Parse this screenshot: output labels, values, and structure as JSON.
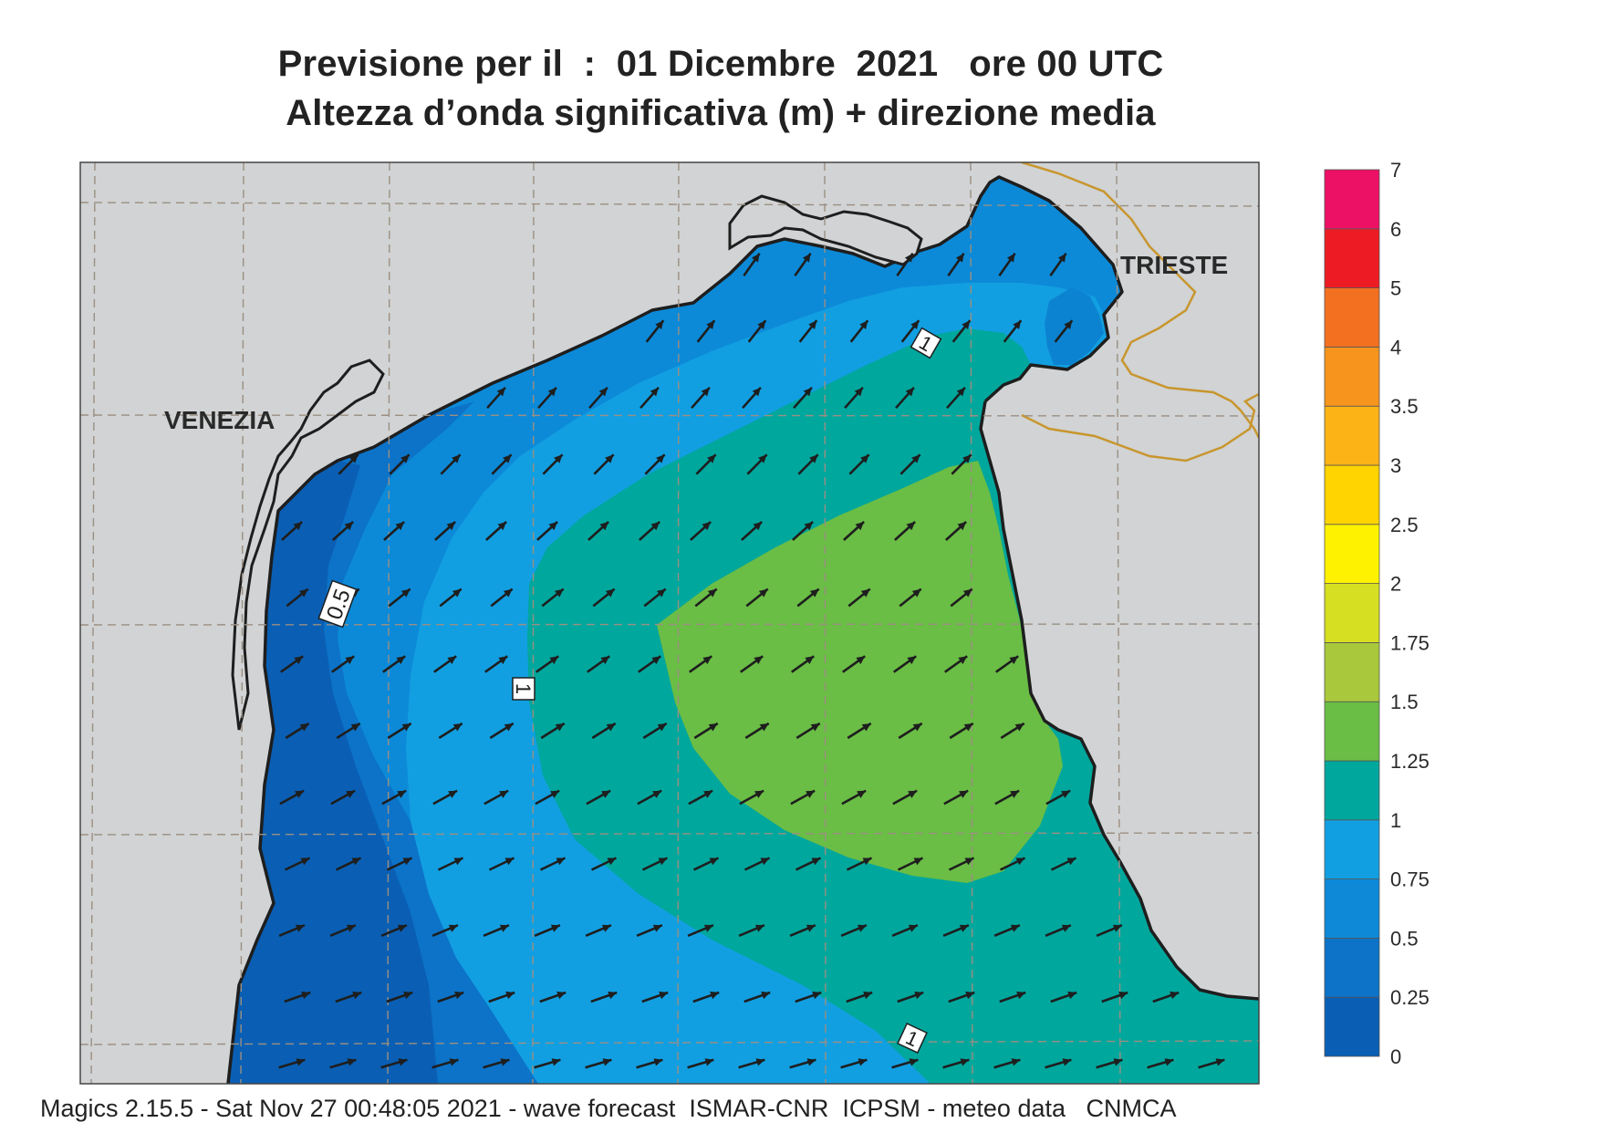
{
  "title": {
    "line1": "Previsione per il  :  01 Dicembre  2021   ore 00 UTC",
    "line2": "Altezza d’onda significativa (m) + direzione media"
  },
  "map": {
    "cities": [
      {
        "name": "VENEZIA"
      },
      {
        "name": "TRIESTE"
      }
    ],
    "contour_labels": [
      "0.5",
      "1",
      "1",
      "1"
    ],
    "wave_direction": "towards north-east",
    "colors": {
      "land": "#d1d3d4",
      "coast": "#1e1e1e",
      "border": "#c8962e",
      "grid": "#9b8f82",
      "arrow": "#1e1e1e"
    }
  },
  "legend": {
    "levels": [
      "0",
      "0.25",
      "0.5",
      "0.75",
      "1",
      "1.25",
      "1.5",
      "1.75",
      "2",
      "2.5",
      "3",
      "3.5",
      "4",
      "5",
      "6",
      "7"
    ],
    "colors": [
      "#0a5fb4",
      "#0c73c8",
      "#0d89d8",
      "#129fe1",
      "#00a79d",
      "#6abd45",
      "#a9c83b",
      "#d6df22",
      "#fff200",
      "#ffd400",
      "#fbb316",
      "#f7941d",
      "#f37021",
      "#ed1c24",
      "#ed1165"
    ]
  },
  "footer": "Magics 2.15.5 - Sat Nov 27 00:48:05 2021 - wave forecast  ISMAR-CNR  ICPSM - meteo data   CNMCA"
}
